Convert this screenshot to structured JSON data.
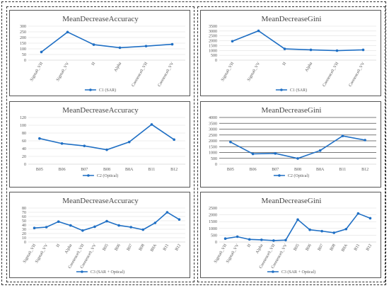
{
  "colors": {
    "series": "#1f6fc4",
    "grid": "#d9d9d9",
    "grid_dark": "#4d4d4d",
    "border": "#555555"
  },
  "chart_data": [
    {
      "type": "line",
      "title": "MeanDecreaseAccuracy",
      "categories": [
        "Sigma0_VH",
        "Sigma0_VV",
        "H",
        "Alpha",
        "Coretence0_VH",
        "Coretence0_VV"
      ],
      "series": [
        {
          "name": "C1 (SAR)",
          "values": [
            72,
            248,
            137,
            110,
            124,
            140
          ]
        }
      ],
      "ylim": [
        0,
        300
      ],
      "yticks": [
        0,
        50,
        100,
        150,
        200,
        250,
        300
      ],
      "rotate_labels": true,
      "grid": "light"
    },
    {
      "type": "line",
      "title": "MeanDecreaseGini",
      "categories": [
        "Sigma0_VH",
        "Sigma0_VV",
        "H",
        "Alpha",
        "Coretence0_VH",
        "Coretence0_VV"
      ],
      "series": [
        {
          "name": "C1 (SAR)",
          "values": [
            1950,
            3020,
            1160,
            1060,
            980,
            1060
          ]
        }
      ],
      "ylim": [
        0,
        3500
      ],
      "yticks": [
        0,
        500,
        1000,
        1500,
        2000,
        2500,
        3000,
        3500
      ],
      "rotate_labels": true,
      "grid": "light"
    },
    {
      "type": "line",
      "title": "MeanDecreaseAccuracy",
      "categories": [
        "B05",
        "B06",
        "B07",
        "B08",
        "B8A",
        "B11",
        "B12"
      ],
      "series": [
        {
          "name": "C2 (Optical)",
          "values": [
            66,
            53,
            47,
            37,
            57,
            102,
            63
          ]
        }
      ],
      "ylim": [
        0,
        120
      ],
      "yticks": [
        0,
        20,
        40,
        60,
        80,
        100,
        120
      ],
      "rotate_labels": false,
      "grid": "light"
    },
    {
      "type": "line",
      "title": "MeanDecreaseGini",
      "categories": [
        "B05",
        "B06",
        "B07",
        "B08",
        "B8A",
        "B11",
        "B12"
      ],
      "series": [
        {
          "name": "C2 (Optical)",
          "values": [
            1900,
            880,
            920,
            490,
            1170,
            2420,
            2060
          ]
        }
      ],
      "ylim": [
        0,
        4000
      ],
      "yticks": [
        0,
        500,
        1000,
        1500,
        2000,
        2500,
        3000,
        3500,
        4000
      ],
      "rotate_labels": false,
      "grid": "dark"
    },
    {
      "type": "line",
      "title": "MeanDecreaseAccuracy",
      "categories": [
        "Sigma0_VH",
        "Sigma0_VV",
        "H",
        "Alpha",
        "Coretence0_VH",
        "Coretence0_VV",
        "B05",
        "B06",
        "B07",
        "B08",
        "B8A",
        "B11",
        "B12"
      ],
      "series": [
        {
          "name": "C3 (SAR + Optical)",
          "values": [
            33,
            35,
            48,
            39,
            27,
            36,
            49,
            39,
            35,
            29,
            45,
            70,
            53
          ]
        }
      ],
      "ylim": [
        0,
        80
      ],
      "yticks": [
        0,
        10,
        20,
        30,
        40,
        50,
        60,
        70,
        80
      ],
      "rotate_labels": true,
      "grid": "light"
    },
    {
      "type": "line",
      "title": "MeanDecreaseGini",
      "categories": [
        "Sigma0_VH",
        "Sigma0_VV",
        "H",
        "Alpha",
        "Coretence0_VH",
        "Coretence0_VV",
        "B05",
        "B06",
        "B07",
        "B08",
        "B8A",
        "B11",
        "B12"
      ],
      "series": [
        {
          "name": "C3 (SAR + Optical)",
          "values": [
            250,
            390,
            190,
            160,
            110,
            140,
            1650,
            900,
            800,
            680,
            950,
            2100,
            1750
          ]
        }
      ],
      "ylim": [
        0,
        2500
      ],
      "yticks": [
        0,
        500,
        1000,
        1500,
        2000,
        2500
      ],
      "rotate_labels": true,
      "grid": "light"
    }
  ]
}
